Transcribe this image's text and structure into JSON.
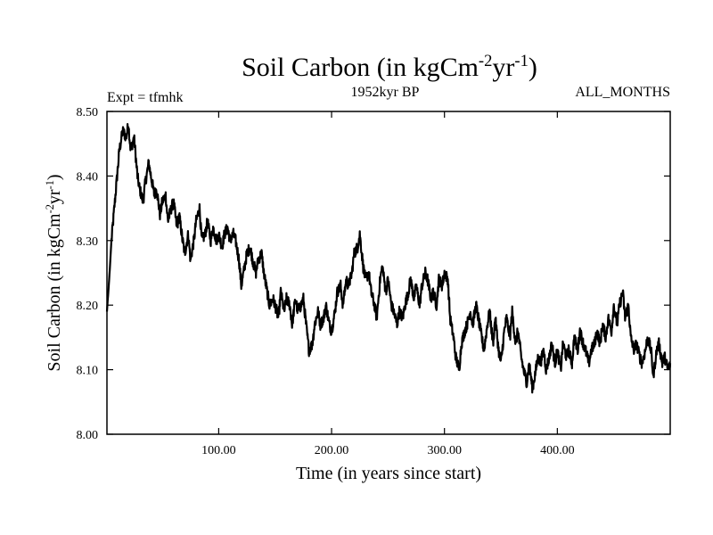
{
  "chart_data": {
    "type": "line",
    "title": {
      "main": "Soil Carbon (in kgCm",
      "exp1": "-2",
      "mid": "yr",
      "exp2": "-1",
      "close": ")"
    },
    "subtitle_left": "Expt = tfmhk",
    "subtitle_center": "1952kyr BP",
    "subtitle_right": "ALL_MONTHS",
    "xlabel": "Time (in years since start)",
    "ylabel": {
      "main": "Soil Carbon (in kgCm",
      "exp1": "-2",
      "mid": "yr",
      "exp2": "-1",
      "close": ")"
    },
    "xlim": [
      1,
      500
    ],
    "ylim": [
      8.0,
      8.5
    ],
    "x_ticks": [
      {
        "value": 100,
        "label": "100.00"
      },
      {
        "value": 200,
        "label": "200.00"
      },
      {
        "value": 300,
        "label": "300.00"
      },
      {
        "value": 400,
        "label": "400.00"
      }
    ],
    "y_ticks": [
      {
        "value": 8.0,
        "label": "8.00"
      },
      {
        "value": 8.1,
        "label": "8.10"
      },
      {
        "value": 8.2,
        "label": "8.20"
      },
      {
        "value": 8.3,
        "label": "8.30"
      },
      {
        "value": 8.4,
        "label": "8.40"
      },
      {
        "value": 8.5,
        "label": "8.50"
      }
    ],
    "grid": false,
    "legend": "none",
    "line_color": "#000000",
    "series": [
      {
        "name": "Soil Carbon",
        "x": [
          1,
          3,
          5,
          8,
          10,
          12,
          15,
          18,
          20,
          22,
          25,
          28,
          30,
          33,
          35,
          38,
          40,
          43,
          45,
          48,
          50,
          53,
          55,
          58,
          60,
          63,
          65,
          68,
          70,
          73,
          75,
          78,
          80,
          83,
          85,
          88,
          90,
          93,
          95,
          98,
          100,
          103,
          105,
          108,
          110,
          113,
          115,
          118,
          120,
          123,
          125,
          128,
          130,
          133,
          135,
          138,
          140,
          143,
          145,
          148,
          150,
          153,
          155,
          158,
          160,
          163,
          165,
          168,
          170,
          173,
          175,
          178,
          180,
          183,
          185,
          188,
          190,
          193,
          195,
          198,
          200,
          203,
          205,
          208,
          210,
          213,
          215,
          218,
          220,
          223,
          225,
          228,
          230,
          233,
          235,
          238,
          240,
          243,
          245,
          248,
          250,
          253,
          255,
          258,
          260,
          263,
          265,
          268,
          270,
          273,
          275,
          278,
          280,
          283,
          285,
          288,
          290,
          293,
          295,
          298,
          300,
          303,
          305,
          308,
          310,
          313,
          315,
          318,
          320,
          323,
          325,
          328,
          330,
          333,
          335,
          338,
          340,
          343,
          345,
          348,
          350,
          353,
          355,
          358,
          360,
          363,
          365,
          368,
          370,
          373,
          375,
          378,
          380,
          383,
          385,
          388,
          390,
          393,
          395,
          398,
          400,
          403,
          405,
          408,
          410,
          413,
          415,
          418,
          420,
          423,
          425,
          428,
          430,
          433,
          435,
          438,
          440,
          443,
          445,
          448,
          450,
          453,
          455,
          458,
          460,
          463,
          465,
          468,
          470,
          473,
          475,
          478,
          480,
          483,
          485,
          488,
          490,
          493,
          495,
          498,
          500
        ],
        "values": [
          8.19,
          8.24,
          8.3,
          8.36,
          8.4,
          8.44,
          8.47,
          8.46,
          8.48,
          8.44,
          8.46,
          8.4,
          8.38,
          8.36,
          8.39,
          8.42,
          8.4,
          8.37,
          8.38,
          8.34,
          8.36,
          8.37,
          8.33,
          8.35,
          8.36,
          8.32,
          8.34,
          8.3,
          8.28,
          8.31,
          8.27,
          8.3,
          8.33,
          8.35,
          8.3,
          8.31,
          8.33,
          8.3,
          8.32,
          8.3,
          8.31,
          8.29,
          8.31,
          8.32,
          8.3,
          8.31,
          8.3,
          8.27,
          8.23,
          8.26,
          8.28,
          8.29,
          8.27,
          8.25,
          8.27,
          8.28,
          8.25,
          8.22,
          8.2,
          8.21,
          8.2,
          8.18,
          8.22,
          8.19,
          8.21,
          8.2,
          8.17,
          8.21,
          8.19,
          8.2,
          8.21,
          8.16,
          8.13,
          8.14,
          8.17,
          8.19,
          8.17,
          8.18,
          8.2,
          8.17,
          8.16,
          8.19,
          8.22,
          8.23,
          8.2,
          8.24,
          8.23,
          8.25,
          8.28,
          8.29,
          8.31,
          8.26,
          8.24,
          8.25,
          8.22,
          8.2,
          8.18,
          8.24,
          8.26,
          8.22,
          8.24,
          8.2,
          8.19,
          8.17,
          8.19,
          8.18,
          8.2,
          8.22,
          8.24,
          8.21,
          8.23,
          8.2,
          8.23,
          8.25,
          8.24,
          8.21,
          8.22,
          8.2,
          8.24,
          8.23,
          8.25,
          8.24,
          8.18,
          8.15,
          8.12,
          8.1,
          8.14,
          8.16,
          8.17,
          8.19,
          8.17,
          8.2,
          8.18,
          8.15,
          8.13,
          8.17,
          8.19,
          8.14,
          8.18,
          8.13,
          8.11,
          8.16,
          8.18,
          8.15,
          8.19,
          8.14,
          8.16,
          8.12,
          8.1,
          8.08,
          8.11,
          8.07,
          8.09,
          8.12,
          8.11,
          8.13,
          8.1,
          8.12,
          8.14,
          8.11,
          8.13,
          8.1,
          8.14,
          8.12,
          8.13,
          8.11,
          8.15,
          8.13,
          8.16,
          8.14,
          8.13,
          8.11,
          8.13,
          8.14,
          8.16,
          8.14,
          8.17,
          8.15,
          8.18,
          8.16,
          8.2,
          8.17,
          8.2,
          8.22,
          8.18,
          8.2,
          8.15,
          8.13,
          8.14,
          8.12,
          8.11,
          8.13,
          8.15,
          8.13,
          8.09,
          8.13,
          8.14,
          8.11,
          8.12,
          8.1,
          8.11
        ]
      }
    ]
  }
}
